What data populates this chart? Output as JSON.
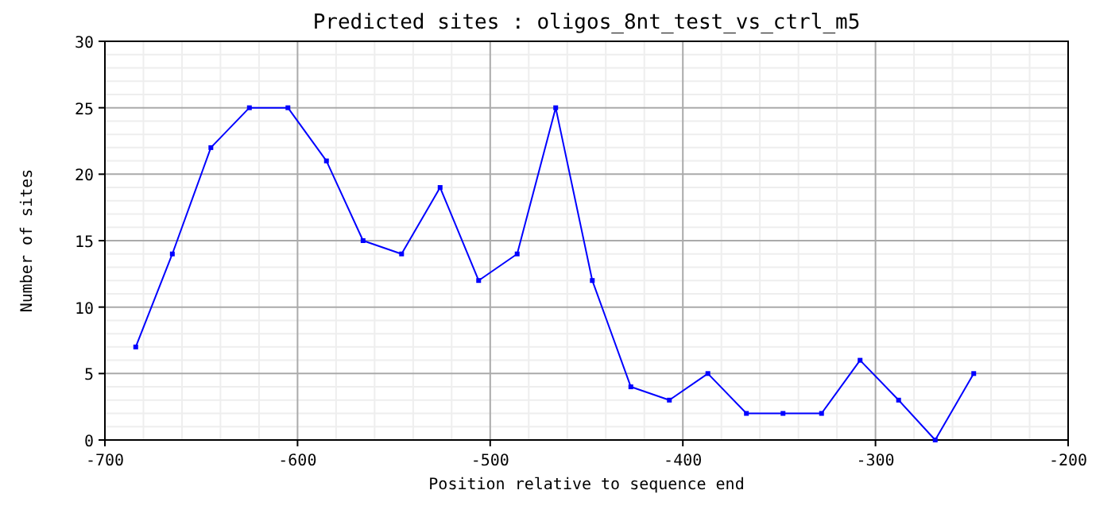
{
  "chart_data": {
    "type": "line",
    "title": "Predicted sites : oligos_8nt_test_vs_ctrl_m5",
    "xlabel": "Position relative to sequence end",
    "ylabel": "Number of sites",
    "x": [
      -684,
      -665,
      -645,
      -625,
      -605,
      -585,
      -566,
      -546,
      -526,
      -506,
      -486,
      -466,
      -447,
      -427,
      -407,
      -387,
      -367,
      -348,
      -328,
      -308,
      -288,
      -269,
      -249
    ],
    "series": [
      {
        "color": "#0000ff",
        "values": [
          7,
          14,
          22,
          25,
          25,
          21,
          15,
          14,
          19,
          12,
          14,
          25,
          12,
          4,
          3,
          5,
          2,
          2,
          2,
          6,
          3,
          0,
          5
        ]
      }
    ],
    "xlim": [
      -700,
      -200
    ],
    "xticks": [
      -700,
      -600,
      -500,
      -400,
      -300,
      -200
    ],
    "ylim": [
      0,
      30
    ],
    "yticks": [
      0,
      5,
      10,
      15,
      20,
      25,
      30
    ],
    "grid": true,
    "marker": "square",
    "line_style": "solid"
  }
}
